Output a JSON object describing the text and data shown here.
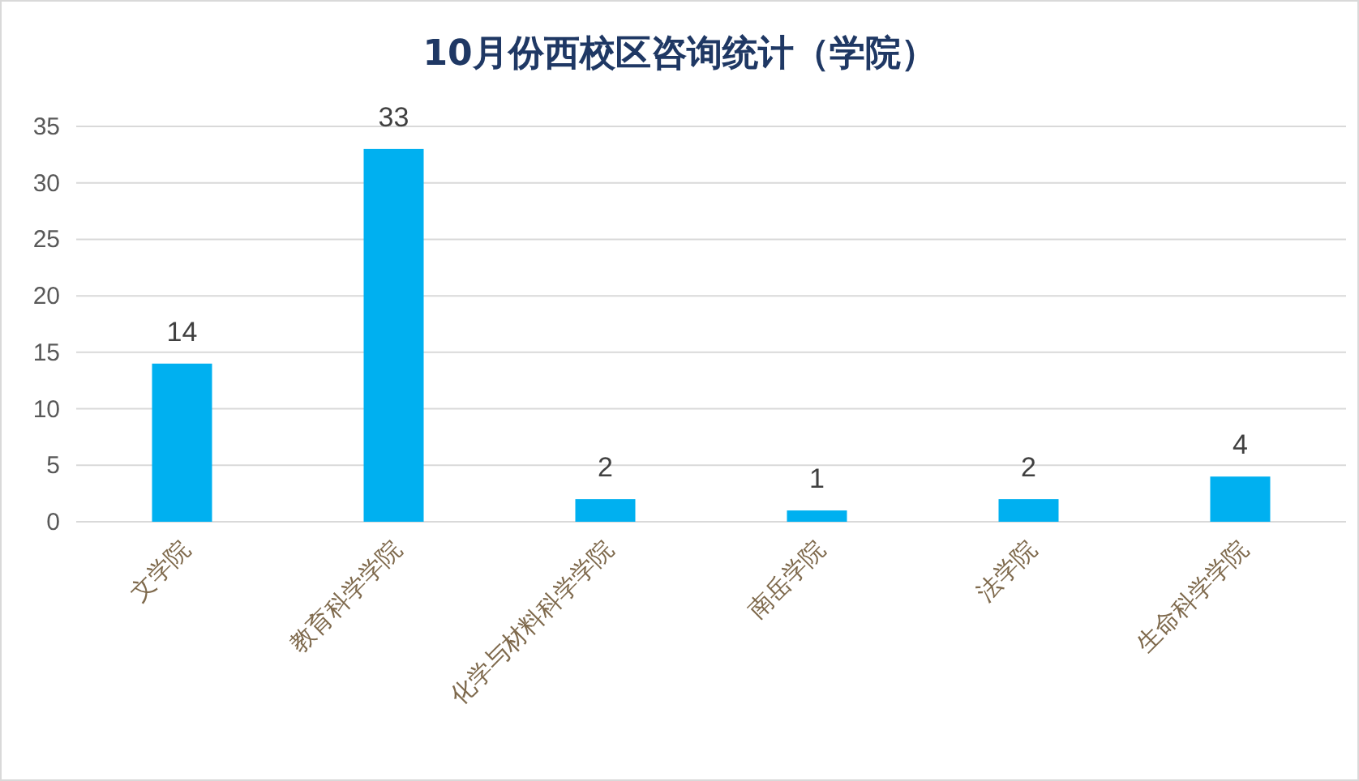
{
  "chart_data": {
    "type": "bar",
    "title": "10月份西校区咨询统计（学院）",
    "categories": [
      "文学院",
      "教育科学学院",
      "化学与材料科学学院",
      "南岳学院",
      "法学院",
      "生命科学学院"
    ],
    "values": [
      14,
      33,
      2,
      1,
      2,
      4
    ],
    "color": "#00b0f0",
    "ylim": [
      0,
      35
    ],
    "yticks": [
      0,
      5,
      10,
      15,
      20,
      25,
      30,
      35
    ],
    "grid": "y",
    "data_labels": true
  }
}
